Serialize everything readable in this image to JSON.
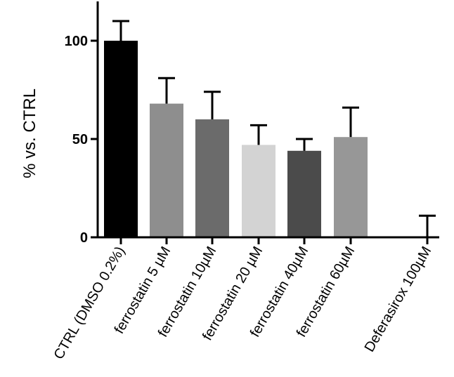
{
  "chart_data": {
    "type": "bar",
    "title": "",
    "xlabel": "",
    "ylabel": "% vs. CTRL",
    "ylim": [
      0,
      120
    ],
    "yticks": [
      0,
      50,
      100
    ],
    "grid": false,
    "legend": "none",
    "categories": [
      "CTRL (DMSO 0.2%)",
      "ferrostatin 5 µM",
      "ferrostatin 10µM",
      "ferrostatin 20 µM",
      "ferrostatin 40µM",
      "ferrostatin 60µM",
      "Deferasirox 100µM"
    ],
    "values": [
      100,
      68,
      60,
      47,
      44,
      51,
      0
    ],
    "errors": [
      10,
      13,
      14,
      10,
      6,
      15,
      11
    ],
    "colors": [
      "#000000",
      "#8e8e8e",
      "#6b6b6b",
      "#d3d3d3",
      "#4b4b4b",
      "#979797",
      "#ffffff"
    ]
  }
}
